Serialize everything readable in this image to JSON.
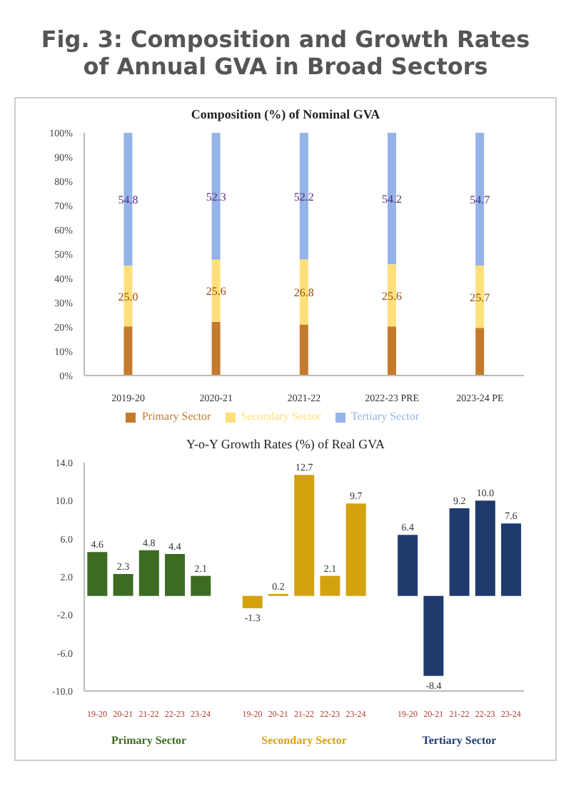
{
  "chart_data": [
    {
      "type": "bar",
      "title": "Fig. 3: Composition and Growth Rates of Annual GVA in Broad Sectors",
      "subtitle": "Composition (%) of Nominal GVA",
      "categories": [
        "2019-20",
        "2020-21",
        "2021-22",
        "2022-23 PRE",
        "2023-24 PE"
      ],
      "stacked": true,
      "series": [
        {
          "name": "Primary Sector",
          "color": "#c47a2c",
          "values": [
            20.2,
            22.1,
            21.0,
            20.2,
            19.6
          ]
        },
        {
          "name": "Secondary Sector",
          "color": "#ffe07a",
          "values": [
            25.0,
            25.6,
            26.8,
            25.6,
            25.7
          ],
          "value_labels": [
            "25.0",
            "25.6",
            "26.8",
            "25.6",
            "25.7"
          ]
        },
        {
          "name": "Tertiary Sector",
          "color": "#95b3e6",
          "values": [
            54.8,
            52.3,
            52.2,
            54.2,
            54.7
          ],
          "value_labels": [
            "54.8",
            "52.3",
            "52.2",
            "54.2",
            "54.7"
          ]
        }
      ],
      "ylim": [
        0,
        100
      ],
      "yticks": [
        {
          "value": 0,
          "label": "0%"
        },
        {
          "value": 10,
          "label": "10%"
        },
        {
          "value": 20,
          "label": "20%"
        },
        {
          "value": 30,
          "label": "30%"
        },
        {
          "value": 40,
          "label": "40%"
        },
        {
          "value": 50,
          "label": "50%"
        },
        {
          "value": 60,
          "label": "60%"
        },
        {
          "value": 70,
          "label": "70%"
        },
        {
          "value": 80,
          "label": "80%"
        },
        {
          "value": 90,
          "label": "90%"
        },
        {
          "value": 100,
          "label": "100%"
        }
      ],
      "legend": "bottom"
    },
    {
      "type": "bar",
      "title": "Y-o-Y Growth Rates (%) of Real GVA",
      "categories": [
        "19-20",
        "20-21",
        "21-22",
        "22-23",
        "23-24",
        null,
        "19-20",
        "20-21",
        "21-22",
        "22-23",
        "23-24",
        null,
        "19-20",
        "20-21",
        "21-22",
        "22-23",
        "23-24"
      ],
      "series": [
        {
          "name": "Primary Sector",
          "color": "#3d6b22",
          "values": [
            4.6,
            2.3,
            4.8,
            4.4,
            2.1,
            null,
            null,
            null,
            null,
            null,
            null,
            null,
            null,
            null,
            null,
            null,
            null
          ],
          "value_labels": [
            "4.6",
            "2.3",
            "4.8",
            "4.4",
            "2.1",
            null,
            null,
            null,
            null,
            null,
            null,
            null,
            null,
            null,
            null,
            null,
            null
          ]
        },
        {
          "name": "Secondary Sector",
          "color": "#d4a20f",
          "values": [
            null,
            null,
            null,
            null,
            null,
            null,
            -1.3,
            0.2,
            12.7,
            2.1,
            9.7,
            null,
            null,
            null,
            null,
            null,
            null
          ],
          "value_labels": [
            null,
            null,
            null,
            null,
            null,
            null,
            "-1.3",
            "0.2",
            "12.7",
            "2.1",
            "9.7",
            null,
            null,
            null,
            null,
            null,
            null
          ]
        },
        {
          "name": "Tertiary Sector",
          "color": "#1f3b6e",
          "values": [
            null,
            null,
            null,
            null,
            null,
            null,
            null,
            null,
            null,
            null,
            null,
            null,
            6.4,
            -8.4,
            9.2,
            10.0,
            7.6
          ],
          "value_labels": [
            null,
            null,
            null,
            null,
            null,
            null,
            null,
            null,
            null,
            null,
            null,
            null,
            "6.4",
            "-8.4",
            "9.2",
            "10.0",
            "7.6"
          ]
        }
      ],
      "ylim": [
        -10,
        14
      ],
      "yticks": [
        {
          "value": -10,
          "label": "-10.0"
        },
        {
          "value": -6,
          "label": "-6.0"
        },
        {
          "value": -2,
          "label": "-2.0"
        },
        {
          "value": 2,
          "label": "2.0"
        },
        {
          "value": 6,
          "label": "6.0"
        },
        {
          "value": 10,
          "label": "10.0"
        },
        {
          "value": 14,
          "label": "14.0"
        }
      ]
    }
  ]
}
